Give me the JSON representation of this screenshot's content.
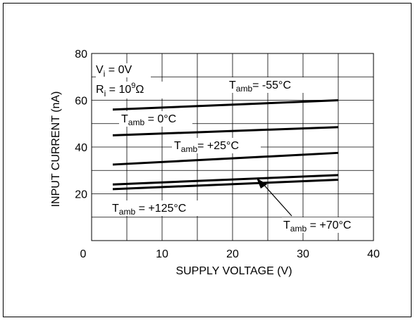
{
  "chart_data": {
    "type": "line",
    "xlabel": "SUPPLY VOLTAGE (V)",
    "ylabel": "INPUT CURRENT (nA)",
    "xlim": [
      0,
      40
    ],
    "ylim": [
      0,
      80
    ],
    "x_ticks": [
      "0",
      "10",
      "20",
      "30",
      "40"
    ],
    "y_ticks": [
      "80",
      "60",
      "40",
      "20"
    ],
    "grid": true,
    "conditions": {
      "vi": {
        "main": "V",
        "sub": "i",
        "rest": " = 0V"
      },
      "ri": {
        "main": "R",
        "sub": "i",
        "mid": " = 10",
        "sup": "9",
        "unit": "Ω"
      }
    },
    "series": [
      {
        "label_main": "T",
        "label_sub": "amb",
        "label_rest": "= -55°C",
        "x": [
          3,
          35
        ],
        "y": [
          56,
          60
        ]
      },
      {
        "label_main": "T",
        "label_sub": "amb",
        "label_rest": " = 0°C",
        "x": [
          3,
          35
        ],
        "y": [
          45,
          48.5
        ]
      },
      {
        "label_main": "T",
        "label_sub": "amb",
        "label_rest": "= +25°C",
        "x": [
          3,
          35
        ],
        "y": [
          32.5,
          37.5
        ]
      },
      {
        "label_main": "T",
        "label_sub": "amb",
        "label_rest": " = +70°C",
        "x": [
          3,
          35
        ],
        "y": [
          24,
          28
        ]
      },
      {
        "label_main": "T",
        "label_sub": "amb",
        "label_rest": " = +125°C",
        "x": [
          3,
          35
        ],
        "y": [
          22,
          26
        ]
      }
    ]
  }
}
